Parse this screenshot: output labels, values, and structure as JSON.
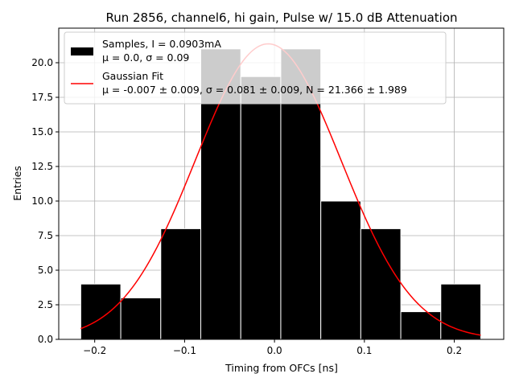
{
  "chart_data": {
    "type": "bar",
    "title": "Run 2856, channel6, hi gain, Pulse w/ 15.0 dB Attenuation",
    "xlabel": "Timing from OFCs [ns]",
    "ylabel": "Entries",
    "xlim": [
      -0.24,
      0.255
    ],
    "ylim": [
      0,
      22.5
    ],
    "grid": true,
    "x_ticks": [
      -0.2,
      -0.1,
      0.0,
      0.1,
      0.2
    ],
    "x_tick_labels": [
      "−0.2",
      "−0.1",
      "0.0",
      "0.1",
      "0.2"
    ],
    "y_ticks": [
      0.0,
      2.5,
      5.0,
      7.5,
      10.0,
      12.5,
      15.0,
      17.5,
      20.0
    ],
    "y_tick_labels": [
      "0.0",
      "2.5",
      "5.0",
      "7.5",
      "10.0",
      "12.5",
      "15.0",
      "17.5",
      "20.0"
    ],
    "histogram": {
      "name": "Samples",
      "color": "#000000",
      "bin_edges": [
        -0.2155,
        -0.171,
        -0.1265,
        -0.082,
        -0.0375,
        0.007,
        0.0515,
        0.096,
        0.1405,
        0.185,
        0.2295
      ],
      "counts": [
        4,
        3,
        8,
        21,
        19,
        21,
        10,
        8,
        2,
        4
      ]
    },
    "fit": {
      "name": "Gaussian Fit",
      "color": "#ff0000",
      "mu": -0.007,
      "sigma": 0.081,
      "N": 21.366,
      "x_range": [
        -0.2155,
        0.2295
      ]
    },
    "legend": {
      "placement": "top-left",
      "entries": [
        {
          "line1": "Samples, I = 0.0903mA",
          "line2": "μ = 0.0, σ = 0.09",
          "color": "#000000",
          "marker": "patch"
        },
        {
          "line1": "Gaussian Fit",
          "line2": "μ = -0.007 ± 0.009, σ = 0.081 ± 0.009, N = 21.366 ± 1.989",
          "color": "#ff0000",
          "marker": "line"
        }
      ]
    },
    "colors": {
      "grid": "#b0b0b0",
      "bar_edge": "#ffffff",
      "axes": "#000000"
    }
  }
}
